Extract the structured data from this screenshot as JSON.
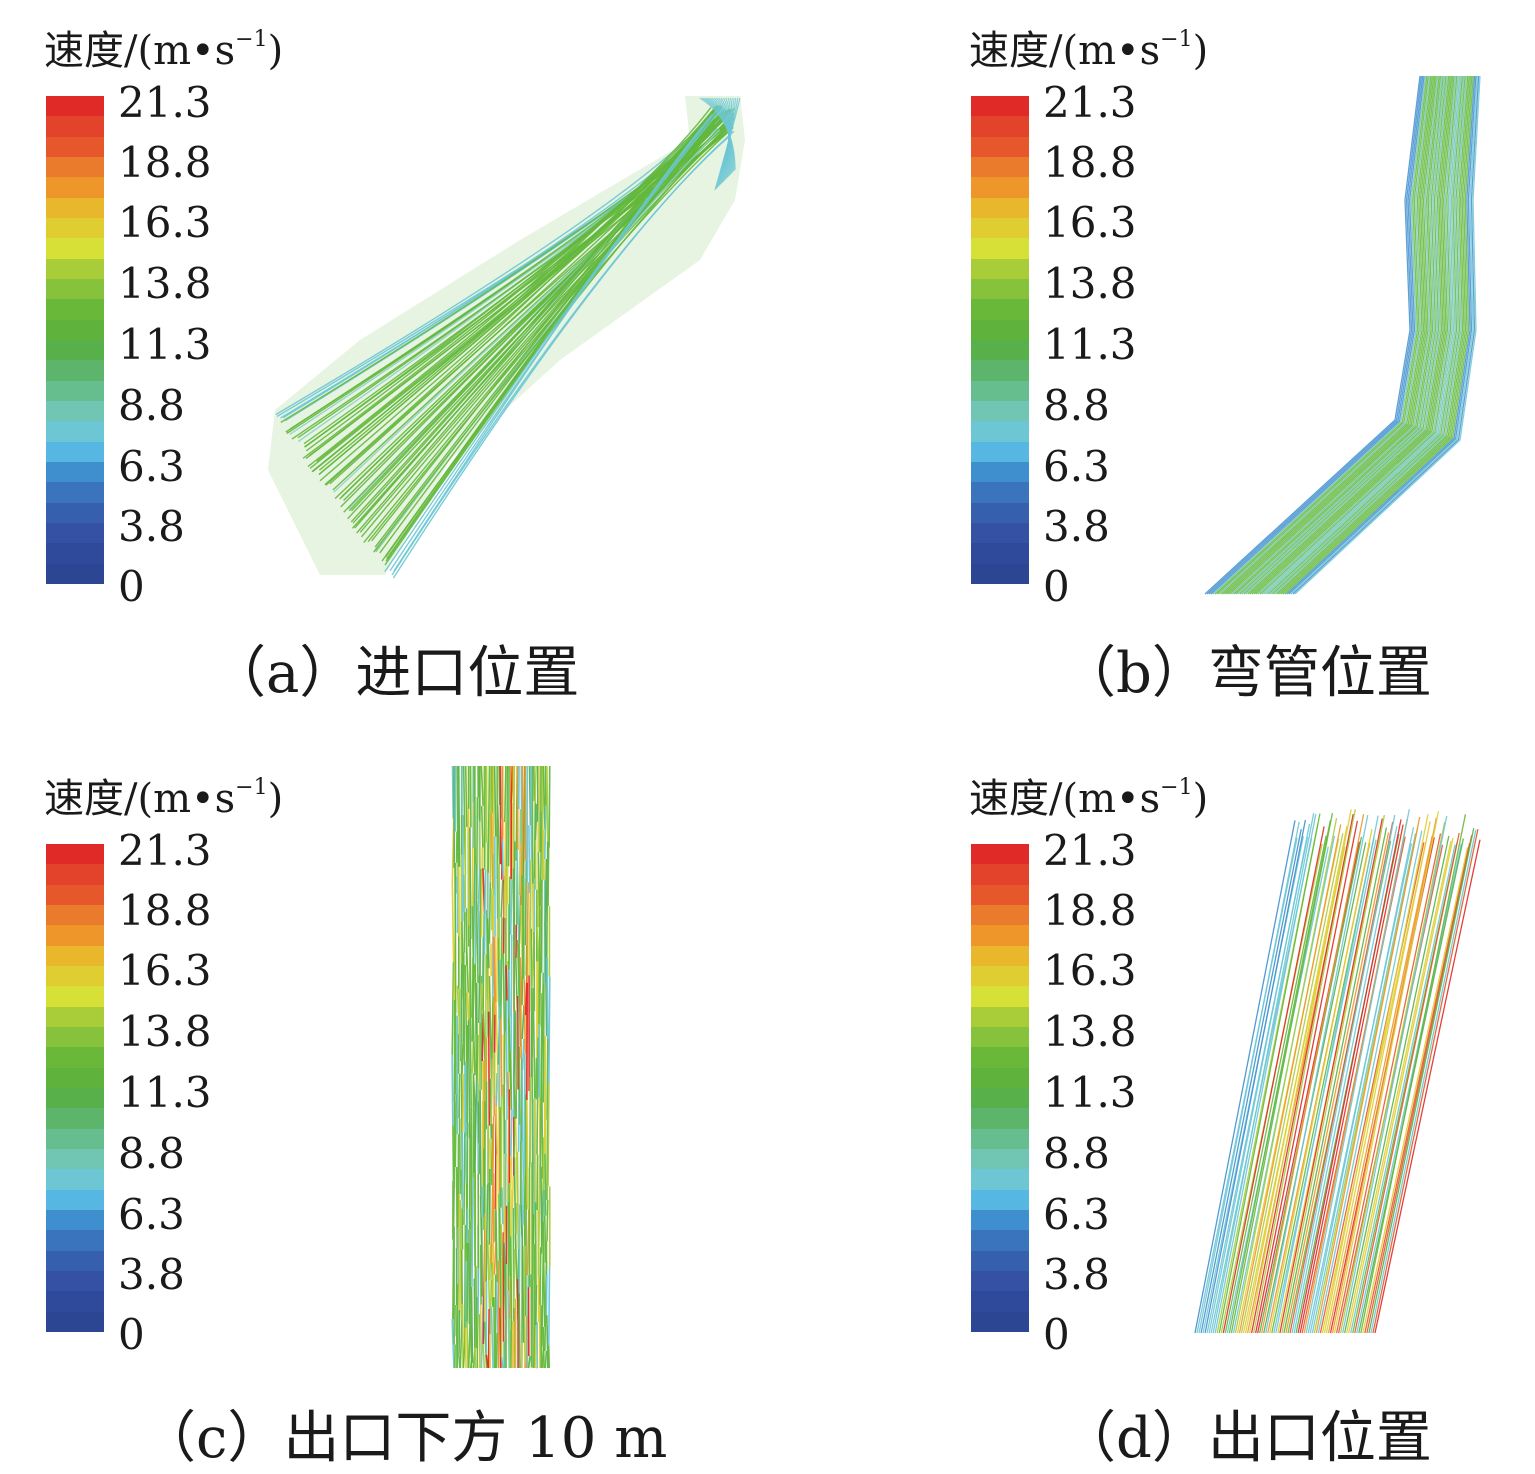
{
  "legend": {
    "title": "速度/(m•s",
    "title_exp": "−1",
    "title_close": ")",
    "ticks": [
      "21.3",
      "18.8",
      "16.3",
      "13.8",
      "11.3",
      "8.8",
      "6.3",
      "3.8",
      "0"
    ],
    "colors": [
      "#df2a27",
      "#e4432b",
      "#e6582c",
      "#ea7a2c",
      "#ee962a",
      "#e8b72b",
      "#dfcd31",
      "#d6e037",
      "#a9cd39",
      "#86c23b",
      "#6ab83a",
      "#5fb23c",
      "#57b049",
      "#5db46b",
      "#66be8e",
      "#70c5b3",
      "#6cc6d4",
      "#55b7e2",
      "#3f8fcf",
      "#3a74bd",
      "#365fae",
      "#3451a4",
      "#2f4a9a",
      "#2c4694"
    ]
  },
  "panels": [
    {
      "id": "a",
      "caption": "（a）进口位置"
    },
    {
      "id": "b",
      "caption": "（b）弯管位置"
    },
    {
      "id": "c",
      "caption": "（c）出口下方 10 m"
    },
    {
      "id": "d",
      "caption": "（d）出口位置"
    }
  ]
}
